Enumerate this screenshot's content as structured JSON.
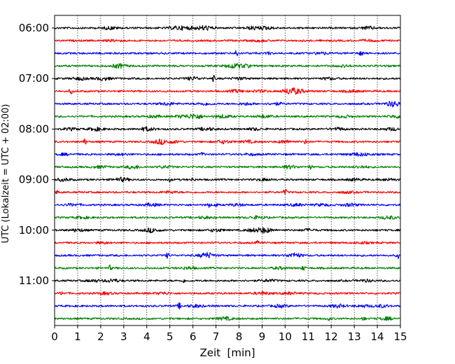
{
  "chart_data": {
    "type": "line",
    "subtype": "helicorder-seismogram",
    "xlabel": "Zeit  [min]",
    "ylabel": "UTC (Lokalzeit = UTC + 02:00)",
    "xlim": [
      0,
      15
    ],
    "x_ticks": [
      "0",
      "1",
      "2",
      "3",
      "4",
      "5",
      "6",
      "7",
      "8",
      "9",
      "10",
      "11",
      "12",
      "13",
      "14",
      "15"
    ],
    "y_tick_labels": [
      "06:00",
      "07:00",
      "08:00",
      "09:00",
      "10:00",
      "11:00"
    ],
    "rows_per_hour": 4,
    "row_minutes": 15,
    "n_rows": 24,
    "row_start_times": [
      "06:00",
      "06:15",
      "06:30",
      "06:45",
      "07:00",
      "07:15",
      "07:30",
      "07:45",
      "08:00",
      "08:15",
      "08:30",
      "08:45",
      "09:00",
      "09:15",
      "09:30",
      "09:45",
      "10:00",
      "10:15",
      "10:30",
      "10:45",
      "11:00",
      "11:15",
      "11:30",
      "11:45"
    ],
    "trace_colors": [
      "#000000",
      "#ff0000",
      "#0000ff",
      "#008000"
    ],
    "grid": "vertical dotted at each minute",
    "events": [
      [
        [
          2.4,
          0.5,
          "b"
        ],
        [
          5.3,
          0.6,
          "b"
        ],
        [
          5.8,
          0.5,
          "b"
        ],
        [
          6.5,
          0.9,
          "b"
        ],
        [
          8.6,
          0.6,
          "b"
        ],
        [
          9.2,
          0.5,
          "b"
        ],
        [
          13.6,
          0.5,
          "b"
        ]
      ],
      [
        [
          2.6,
          0.3,
          "b"
        ],
        [
          8.9,
          0.3,
          "b"
        ],
        [
          13.6,
          0.3,
          "b"
        ]
      ],
      [
        [
          7.9,
          1.6,
          "s"
        ],
        [
          9.3,
          0.8,
          "s"
        ],
        [
          11.6,
          0.4,
          "b"
        ],
        [
          13.3,
          1.6,
          "s"
        ]
      ],
      [
        [
          2.8,
          0.8,
          "b"
        ],
        [
          7.7,
          0.8,
          "b"
        ],
        [
          8.2,
          0.6,
          "b"
        ],
        [
          12.6,
          0.3,
          "b"
        ]
      ],
      [
        [
          1.1,
          0.5,
          "b"
        ],
        [
          2.1,
          0.6,
          "b"
        ],
        [
          6.0,
          0.6,
          "b"
        ],
        [
          6.9,
          1.1,
          "s"
        ],
        [
          8.0,
          0.4,
          "b"
        ],
        [
          11.9,
          0.4,
          "b"
        ]
      ],
      [
        [
          0.7,
          1.0,
          "s"
        ],
        [
          7.9,
          0.5,
          "b"
        ],
        [
          8.9,
          0.4,
          "b"
        ],
        [
          10.2,
          1.2,
          "b"
        ],
        [
          10.6,
          0.6,
          "b"
        ],
        [
          12.9,
          0.4,
          "b"
        ]
      ],
      [
        [
          4.9,
          0.5,
          "b"
        ],
        [
          6.5,
          0.4,
          "b"
        ],
        [
          8.3,
          0.4,
          "b"
        ],
        [
          9.6,
          0.4,
          "b"
        ],
        [
          14.7,
          1.1,
          "b"
        ]
      ],
      [
        [
          4.3,
          0.4,
          "b"
        ],
        [
          5.5,
          0.5,
          "b"
        ],
        [
          6.1,
          1.0,
          "b"
        ],
        [
          7.3,
          0.6,
          "b"
        ],
        [
          9.1,
          0.5,
          "b"
        ],
        [
          12.6,
          0.4,
          "b"
        ],
        [
          14.8,
          0.5,
          "b"
        ]
      ],
      [
        [
          0.7,
          0.4,
          "b"
        ],
        [
          1.8,
          0.6,
          "b"
        ],
        [
          4.0,
          0.7,
          "b"
        ],
        [
          6.6,
          0.6,
          "b"
        ],
        [
          8.7,
          0.4,
          "b"
        ],
        [
          12.3,
          0.5,
          "b"
        ],
        [
          14.6,
          0.5,
          "b"
        ]
      ],
      [
        [
          1.3,
          1.2,
          "s"
        ],
        [
          4.6,
          0.9,
          "b"
        ],
        [
          5.2,
          0.4,
          "b"
        ],
        [
          7.3,
          0.6,
          "b"
        ],
        [
          8.4,
          0.4,
          "b"
        ],
        [
          10.0,
          0.5,
          "b"
        ],
        [
          10.9,
          0.9,
          "s"
        ]
      ],
      [
        [
          0.4,
          0.3,
          "b"
        ],
        [
          2.9,
          0.3,
          "b"
        ],
        [
          6.4,
          0.8,
          "s"
        ],
        [
          8.5,
          0.3,
          "b"
        ],
        [
          13.1,
          0.5,
          "b"
        ],
        [
          13.5,
          0.3,
          "b"
        ]
      ],
      [
        [
          2.0,
          0.4,
          "b"
        ],
        [
          3.4,
          0.6,
          "b"
        ],
        [
          4.8,
          0.4,
          "b"
        ],
        [
          10.2,
          0.6,
          "b"
        ],
        [
          11.1,
          0.8,
          "s"
        ],
        [
          13.3,
          0.4,
          "b"
        ]
      ],
      [
        [
          0.4,
          0.5,
          "b"
        ],
        [
          2.9,
          0.7,
          "b"
        ],
        [
          5.0,
          0.7,
          "s"
        ],
        [
          6.0,
          0.8,
          "s"
        ],
        [
          9.1,
          0.4,
          "b"
        ],
        [
          13.0,
          0.4,
          "b"
        ],
        [
          14.5,
          0.4,
          "b"
        ]
      ],
      [
        [
          0.1,
          0.6,
          "s"
        ],
        [
          5.0,
          0.4,
          "b"
        ],
        [
          10.0,
          1.3,
          "s"
        ],
        [
          12.7,
          0.3,
          "b"
        ]
      ],
      [
        [
          0.8,
          0.4,
          "b"
        ],
        [
          4.2,
          0.5,
          "b"
        ],
        [
          6.7,
          0.9,
          "s"
        ],
        [
          7.0,
          0.6,
          "s"
        ],
        [
          7.9,
          0.4,
          "b"
        ],
        [
          10.5,
          0.4,
          "b"
        ],
        [
          11.6,
          0.4,
          "b"
        ],
        [
          12.8,
          0.5,
          "b"
        ]
      ],
      [
        [
          1.2,
          0.4,
          "b"
        ],
        [
          6.5,
          0.4,
          "b"
        ],
        [
          8.8,
          0.5,
          "b"
        ],
        [
          14.5,
          0.6,
          "b"
        ]
      ],
      [
        [
          1.0,
          0.5,
          "b"
        ],
        [
          4.2,
          0.8,
          "b"
        ],
        [
          7.0,
          0.5,
          "b"
        ],
        [
          8.6,
          0.5,
          "b"
        ],
        [
          9.1,
          1.0,
          "b"
        ],
        [
          11.0,
          0.4,
          "b"
        ]
      ],
      [
        [
          2.1,
          0.3,
          "b"
        ],
        [
          8.8,
          0.6,
          "s"
        ],
        [
          13.3,
          0.3,
          "b"
        ]
      ],
      [
        [
          4.9,
          1.1,
          "s"
        ],
        [
          6.6,
          1.1,
          "b"
        ],
        [
          10.4,
          0.9,
          "b"
        ],
        [
          14.9,
          1.0,
          "s"
        ]
      ],
      [
        [
          2.4,
          1.0,
          "s"
        ],
        [
          5.8,
          0.4,
          "b"
        ],
        [
          9.8,
          0.4,
          "b"
        ],
        [
          10.8,
          1.0,
          "s"
        ]
      ],
      [
        [
          1.7,
          0.4,
          "b"
        ],
        [
          2.5,
          0.6,
          "b"
        ],
        [
          5.6,
          0.6,
          "s"
        ],
        [
          9.3,
          0.4,
          "b"
        ],
        [
          13.5,
          0.4,
          "b"
        ]
      ],
      [
        [
          0.3,
          0.6,
          "s"
        ],
        [
          2.2,
          0.4,
          "b"
        ],
        [
          4.7,
          0.4,
          "b"
        ],
        [
          9.0,
          0.5,
          "b"
        ],
        [
          10.2,
          0.4,
          "b"
        ]
      ],
      [
        [
          5.4,
          1.2,
          "s"
        ],
        [
          6.1,
          0.5,
          "b"
        ],
        [
          9.8,
          0.5,
          "b"
        ],
        [
          12.3,
          0.6,
          "b"
        ],
        [
          13.4,
          0.4,
          "b"
        ],
        [
          14.2,
          0.5,
          "b"
        ]
      ],
      [
        [
          7.4,
          0.6,
          "b"
        ],
        [
          11.9,
          0.6,
          "s"
        ],
        [
          13.4,
          0.6,
          "s"
        ],
        [
          14.4,
          0.5,
          "b"
        ]
      ]
    ]
  }
}
